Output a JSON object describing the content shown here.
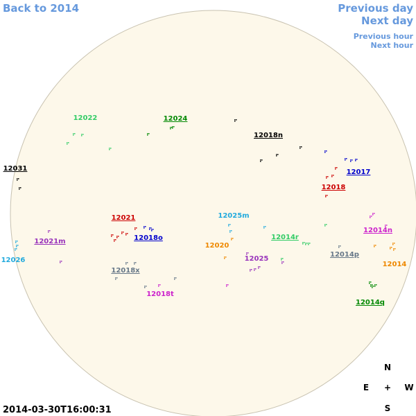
{
  "nav": {
    "back": "Back to 2014",
    "previous_day": "Previous day",
    "next_day": "Next day",
    "previous_hour": "Previous hour",
    "next_hour": "Next hour"
  },
  "timestamp": "2014-03-30T16:00:31",
  "compass": {
    "north": "N",
    "east": "E",
    "center": "+",
    "west": "W",
    "south": "S"
  },
  "regions": [
    {
      "label": "12022",
      "color": "#33cc66"
    },
    {
      "label": "12024",
      "color": "#008800"
    },
    {
      "label": "12018n",
      "color": "#000000"
    },
    {
      "label": "12031",
      "color": "#000000"
    },
    {
      "label": "12017",
      "color": "#0000cc"
    },
    {
      "label": "12018",
      "color": "#cc0000"
    },
    {
      "label": "12021",
      "color": "#cc0000"
    },
    {
      "label": "12025m",
      "color": "#22aadd"
    },
    {
      "label": "12021m",
      "color": "#9933bb"
    },
    {
      "label": "12018o",
      "color": "#0000cc"
    },
    {
      "label": "12014r",
      "color": "#33cc66"
    },
    {
      "label": "12014n",
      "color": "#cc22cc"
    },
    {
      "label": "12020",
      "color": "#ee8800"
    },
    {
      "label": "12026",
      "color": "#22aadd"
    },
    {
      "label": "12025",
      "color": "#9933bb"
    },
    {
      "label": "12014p",
      "color": "#667788"
    },
    {
      "label": "12014",
      "color": "#ee8800"
    },
    {
      "label": "12018x",
      "color": "#667788"
    },
    {
      "label": "12018t",
      "color": "#cc22cc"
    },
    {
      "label": "12014q",
      "color": "#008800"
    }
  ]
}
